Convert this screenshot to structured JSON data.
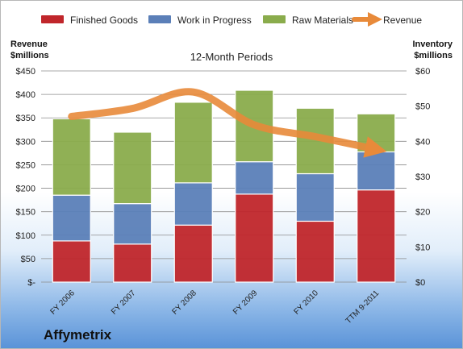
{
  "chart_data": {
    "type": "bar",
    "stacked": true,
    "title": "12-Month Periods",
    "left_axis_label": [
      "Revenue",
      "$millions"
    ],
    "right_axis_label": [
      "Inventory",
      "$millions"
    ],
    "categories": [
      "FY 2006",
      "FY 2007",
      "FY 2008",
      "FY 2009",
      "FY 2010",
      "TTM 9-2011"
    ],
    "series": [
      {
        "name": "Finished Goods",
        "axis": "right",
        "color": "#c0262b",
        "values": [
          11.7,
          10.8,
          16.2,
          25.0,
          17.3,
          26.2
        ]
      },
      {
        "name": "Work in Progress",
        "axis": "right",
        "color": "#5b7fb8",
        "values": [
          13.0,
          11.5,
          12.0,
          9.2,
          13.5,
          10.8
        ]
      },
      {
        "name": "Raw Materials",
        "axis": "right",
        "color": "#8aac4c",
        "values": [
          21.7,
          20.3,
          22.9,
          20.3,
          18.6,
          10.8
        ]
      },
      {
        "name": "Revenue",
        "axis": "left",
        "type": "line",
        "color": "#e88a3a",
        "values": [
          353,
          370,
          405,
          335,
          310,
          283
        ]
      }
    ],
    "left_axis": {
      "min": 0,
      "max": 450,
      "step": 50,
      "tick_labels": [
        "$-",
        "$50",
        "$100",
        "$150",
        "$200",
        "$250",
        "$300",
        "$350",
        "$400",
        "$450"
      ]
    },
    "right_axis": {
      "min": 0,
      "max": 60,
      "step": 10,
      "tick_labels": [
        "$0",
        "$10",
        "$20",
        "$30",
        "$40",
        "$50",
        "$60"
      ]
    },
    "grid": true,
    "legend_position": "top"
  },
  "company": "Affymetrix"
}
